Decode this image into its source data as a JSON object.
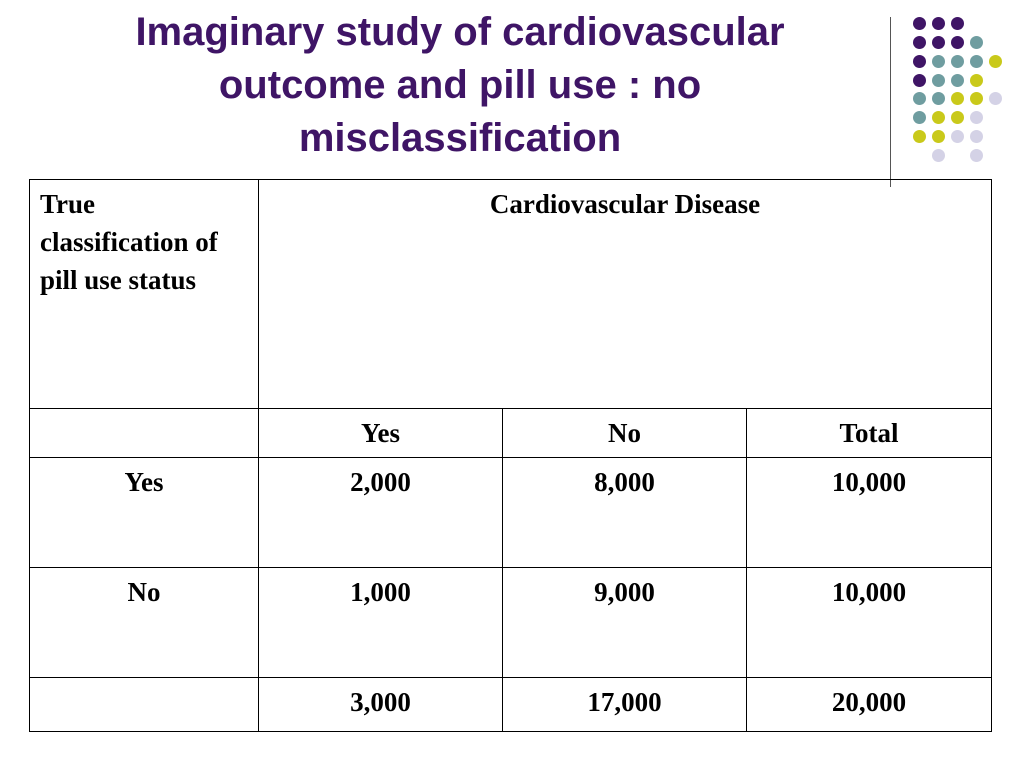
{
  "title": {
    "line1": "Imaginary study of cardiovascular",
    "line2": "outcome and pill use : no",
    "line3": "misclassification"
  },
  "colors": {
    "title": "#3f1566",
    "dot_purple": "#3f1566",
    "dot_teal": "#6f9da0",
    "dot_olive": "#c9c91a",
    "dot_lavender": "#d4d2e6"
  },
  "decoration": {
    "dot_grid_icon": "dot-grid-icon"
  },
  "table": {
    "row_header_label": "True classification of pill use status",
    "column_group_label": "Cardiovascular Disease",
    "column_headers": [
      "Yes",
      "No",
      "Total"
    ],
    "rows": [
      {
        "label": "Yes",
        "values": [
          "2,000",
          "8,000",
          "10,000"
        ]
      },
      {
        "label": "No",
        "values": [
          "1,000",
          "9,000",
          "10,000"
        ]
      }
    ],
    "totals": [
      "3,000",
      "17,000",
      "20,000"
    ]
  }
}
